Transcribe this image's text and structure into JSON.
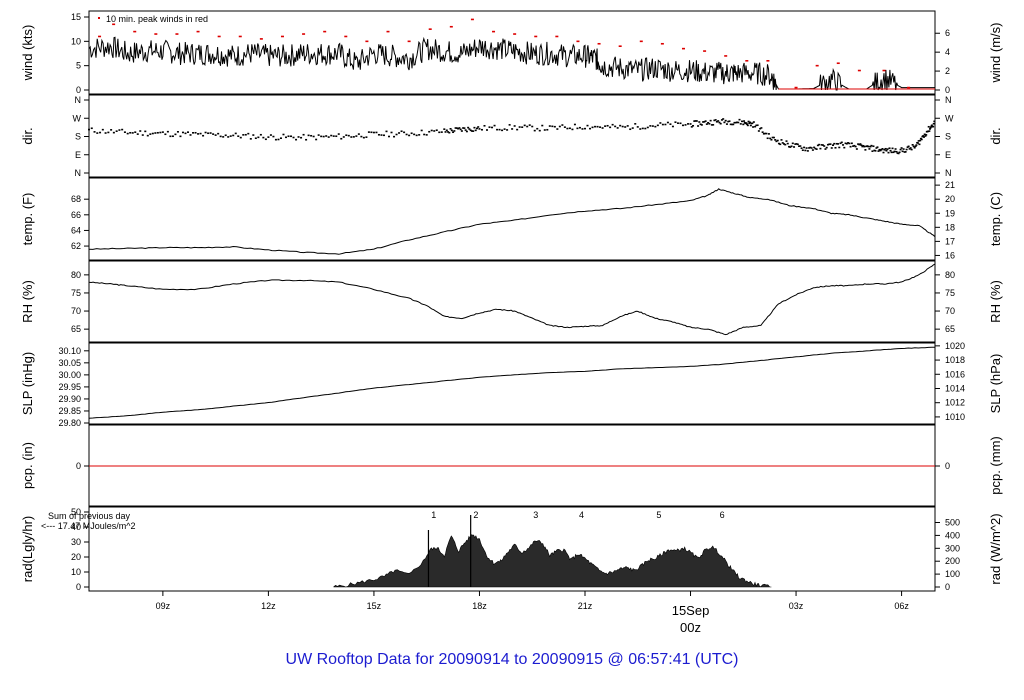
{
  "footer_title": "UW Rooftop Data for 20090914  to  20090915 @ 06:57:41  (UTC)",
  "colors": {
    "peak": "#dd0000",
    "purple": "#9900cc",
    "title_blue": "#1c1cd0",
    "date_red": "#cc0000",
    "line": "#000000"
  },
  "time_axis": {
    "tick_labels": [
      "09z",
      "12z",
      "15z",
      "18z",
      "21z",
      "03z",
      "06z"
    ],
    "tick_hours": [
      9,
      12,
      15,
      18,
      21,
      27,
      30
    ],
    "date_label": "15Sep",
    "midnight_label": "00z",
    "midnight_hour": 24,
    "range_hours": [
      6.9,
      30.95
    ]
  },
  "chart_data": [
    {
      "type": "line",
      "id": "wind",
      "ylabel": "wind (kts)",
      "y2label": "wind (m/s)",
      "ylim": [
        0,
        15
      ],
      "yticks": [
        "0",
        "5",
        "10",
        "15"
      ],
      "y2ticks": [
        "0",
        "2",
        "4",
        "6"
      ],
      "y2_tick_values": [
        0,
        2,
        4,
        6
      ],
      "annotation": "10 min. peak winds in red",
      "series": [
        {
          "x": [
            6.9,
            7.5,
            8.0,
            8.5,
            9.0,
            9.5,
            10.0,
            10.5,
            11.0,
            11.5,
            12.0,
            12.5,
            13.0,
            13.5,
            14.0,
            14.5,
            15.0,
            15.5,
            16.0,
            16.5,
            17.0,
            17.5,
            18.0,
            18.5,
            19.0,
            19.5,
            20.0,
            20.5,
            21.0,
            21.3,
            21.5,
            22.0,
            22.5,
            23.0,
            23.5,
            24.0,
            24.5,
            25.0,
            25.3,
            25.8,
            26.3,
            26.5,
            27.0,
            27.5,
            28.0,
            28.5,
            29.0,
            29.5,
            30.0,
            30.5,
            30.95
          ],
          "y": [
            8.5,
            9.0,
            7.5,
            8.0,
            8.0,
            7.5,
            7.5,
            7.5,
            7.0,
            7.5,
            7.0,
            7.0,
            7.5,
            7.5,
            7.5,
            5.5,
            7.5,
            7.0,
            6.5,
            8.5,
            8.0,
            7.5,
            9.0,
            8.5,
            8.0,
            7.5,
            7.5,
            7.0,
            7.0,
            6.5,
            5.0,
            4.5,
            4.0,
            4.5,
            4.0,
            4.0,
            3.5,
            3.5,
            3.5,
            3.5,
            3.0,
            0.2,
            0.2,
            0.3,
            2.2,
            0.2,
            0.2,
            2.5,
            0.5,
            0.5,
            0.5
          ]
        }
      ],
      "peaks": {
        "x": [
          7.2,
          7.6,
          8.2,
          8.8,
          9.4,
          10.0,
          10.6,
          11.2,
          11.8,
          12.4,
          13.0,
          13.6,
          14.2,
          14.8,
          15.4,
          16.0,
          16.6,
          17.2,
          17.8,
          18.4,
          19.0,
          19.6,
          20.2,
          20.8,
          21.4,
          22.0,
          22.6,
          23.2,
          23.8,
          24.4,
          25.0,
          25.6,
          26.2,
          27.0,
          27.6,
          28.2,
          28.8,
          29.5,
          30.2
        ],
        "y": [
          11.0,
          13.5,
          12.0,
          11.5,
          11.5,
          12.0,
          11.0,
          11.0,
          10.5,
          11.0,
          11.5,
          12.0,
          11.0,
          10.0,
          12.0,
          10.0,
          12.5,
          13.0,
          14.5,
          12.0,
          11.5,
          11.0,
          11.0,
          10.0,
          9.5,
          9.0,
          10.0,
          9.5,
          8.5,
          8.0,
          7.0,
          6.0,
          6.0,
          0.5,
          5.0,
          5.5,
          4.0,
          4.0,
          0.5
        ]
      }
    },
    {
      "type": "scatter",
      "id": "dir",
      "ylabel": "dir.",
      "y2label": "dir.",
      "ylim": [
        0,
        360
      ],
      "yticks": [
        "N",
        "E",
        "S",
        "W",
        "N"
      ],
      "y2ticks": [
        "N",
        "E",
        "S",
        "W",
        "N"
      ],
      "series": [
        {
          "x": [
            6.9,
            8.0,
            9.0,
            10.0,
            11.0,
            12.0,
            13.0,
            14.0,
            15.0,
            16.0,
            17.0,
            17.5,
            18.0,
            19.0,
            20.0,
            21.0,
            22.0,
            23.0,
            24.0,
            24.5,
            25.0,
            25.5,
            25.8,
            26.3,
            26.8,
            27.3,
            27.8,
            28.3,
            28.8,
            29.2,
            29.6,
            30.0,
            30.4,
            30.7,
            30.95
          ],
          "y": [
            210,
            200,
            195,
            190,
            185,
            178,
            175,
            180,
            190,
            195,
            205,
            215,
            220,
            225,
            220,
            230,
            225,
            235,
            240,
            250,
            255,
            250,
            240,
            170,
            140,
            120,
            130,
            140,
            130,
            120,
            110,
            110,
            130,
            200,
            250
          ]
        }
      ]
    },
    {
      "type": "line",
      "id": "temp",
      "ylabel": "temp. (F)",
      "y2label": "temp. (C)",
      "ylim": [
        60.6,
        70.2
      ],
      "yticks": [
        "62",
        "64",
        "66",
        "68"
      ],
      "y2ticks": [
        "16",
        "17",
        "18",
        "19",
        "20",
        "21"
      ],
      "series": [
        {
          "x": [
            6.9,
            8.0,
            9.0,
            10.0,
            11.0,
            12.0,
            13.0,
            14.0,
            15.0,
            16.0,
            17.0,
            18.0,
            19.0,
            20.0,
            21.0,
            22.0,
            23.0,
            24.0,
            24.5,
            24.8,
            25.2,
            25.7,
            26.2,
            26.8,
            27.5,
            28.0,
            28.5,
            29.0,
            29.5,
            30.0,
            30.5,
            30.95
          ],
          "y": [
            61.6,
            61.7,
            61.8,
            61.8,
            61.9,
            61.5,
            61.2,
            61.0,
            61.6,
            62.8,
            63.8,
            64.8,
            65.3,
            66.0,
            66.5,
            66.8,
            67.3,
            67.8,
            68.5,
            69.3,
            68.8,
            68.2,
            68.0,
            67.2,
            66.8,
            66.2,
            66.0,
            65.6,
            65.2,
            64.8,
            64.6,
            63.2
          ]
        }
      ]
    },
    {
      "type": "line",
      "id": "rh",
      "ylabel": "RH (%)",
      "y2label": "RH (%)",
      "ylim": [
        62,
        83
      ],
      "yticks": [
        "65",
        "70",
        "75",
        "80"
      ],
      "y2ticks": [
        "65",
        "70",
        "75",
        "80"
      ],
      "series": [
        {
          "x": [
            6.9,
            7.5,
            8.0,
            9.0,
            10.0,
            11.0,
            12.0,
            13.0,
            14.0,
            15.0,
            16.0,
            16.5,
            17.0,
            17.5,
            18.0,
            18.5,
            19.0,
            19.5,
            20.0,
            20.5,
            21.0,
            21.5,
            22.0,
            22.5,
            23.0,
            23.5,
            24.0,
            24.5,
            25.0,
            25.5,
            26.0,
            26.5,
            27.0,
            27.5,
            28.0,
            28.5,
            29.0,
            29.5,
            30.0,
            30.5,
            30.95
          ],
          "y": [
            78.0,
            77.5,
            77.0,
            76.0,
            76.0,
            77.5,
            78.5,
            78.5,
            78.0,
            76.0,
            73.5,
            71.5,
            68.5,
            68.0,
            69.5,
            70.5,
            70.0,
            68.0,
            66.0,
            65.5,
            65.8,
            66.0,
            68.5,
            70.0,
            68.0,
            67.0,
            65.5,
            65.0,
            63.5,
            65.5,
            66.0,
            72.0,
            74.5,
            76.5,
            77.0,
            77.0,
            77.5,
            77.5,
            78.0,
            80.0,
            83.0
          ]
        }
      ]
    },
    {
      "type": "line",
      "id": "slp",
      "ylabel": "SLP (inHg)",
      "y2label": "SLP (hPa)",
      "ylim": [
        29.8,
        30.12
      ],
      "yticks": [
        "29.80",
        "29.85",
        "29.90",
        "29.95",
        "30.00",
        "30.05",
        "30.10"
      ],
      "y2ticks": [
        "1010",
        "1012",
        "1014",
        "1016",
        "1018",
        "1020"
      ],
      "y2_tick_values": [
        1010,
        1012,
        1014,
        1016,
        1018,
        1020
      ],
      "series": [
        {
          "x": [
            6.9,
            8.0,
            9.0,
            10.0,
            11.0,
            12.0,
            13.0,
            14.0,
            15.0,
            16.0,
            17.0,
            18.0,
            19.0,
            20.0,
            21.0,
            22.0,
            23.0,
            24.0,
            25.0,
            26.0,
            27.0,
            28.0,
            29.0,
            30.0,
            30.95
          ],
          "y": [
            29.82,
            29.83,
            29.845,
            29.855,
            29.87,
            29.885,
            29.905,
            29.925,
            29.945,
            29.96,
            29.975,
            29.99,
            30.0,
            30.01,
            30.015,
            30.025,
            30.03,
            30.035,
            30.045,
            30.06,
            30.075,
            30.09,
            30.1,
            30.11,
            30.115
          ]
        }
      ]
    },
    {
      "type": "line",
      "id": "pcp",
      "ylabel": "pcp. (in)",
      "y2label": "pcp. (mm)",
      "ylim": [
        -1,
        1
      ],
      "yticks": [
        "0"
      ],
      "y2ticks": [
        "0"
      ],
      "series": [
        {
          "x": [
            6.9,
            30.95
          ],
          "y": [
            0,
            0
          ]
        }
      ]
    },
    {
      "type": "area",
      "id": "rad",
      "ylabel": "rad(Lgly/hr)",
      "y2label": "rad (W/m^2)",
      "ylim": [
        0,
        50
      ],
      "yticks": [
        "0",
        "10",
        "20",
        "30",
        "40",
        "50"
      ],
      "y2ticks": [
        "0",
        "100",
        "200",
        "300",
        "400",
        "500"
      ],
      "y2_tick_values": [
        0,
        100,
        200,
        300,
        400,
        500
      ],
      "annotation_lines": [
        "Sum of previous day",
        "<--- 17.47 MJoules/m^2"
      ],
      "hour_marks": [
        "1",
        "2",
        "3",
        "4",
        "5",
        "6"
      ],
      "hour_mark_x": [
        16.7,
        17.9,
        19.6,
        20.9,
        23.1,
        24.9
      ],
      "series": [
        {
          "x": [
            13.85,
            14.2,
            14.6,
            15.0,
            15.3,
            15.6,
            16.0,
            16.4,
            16.6,
            16.8,
            17.0,
            17.2,
            17.4,
            17.6,
            17.8,
            18.0,
            18.2,
            18.4,
            18.6,
            18.8,
            19.0,
            19.2,
            19.4,
            19.6,
            19.8,
            20.0,
            20.2,
            20.4,
            20.6,
            20.8,
            21.0,
            21.2,
            21.4,
            21.6,
            21.8,
            22.0,
            22.2,
            22.4,
            22.6,
            22.8,
            23.0,
            23.2,
            23.4,
            23.6,
            23.8,
            24.0,
            24.2,
            24.4,
            24.6,
            24.8,
            25.0,
            25.2,
            25.4,
            25.6,
            25.8,
            26.0,
            26.3
          ],
          "y": [
            0,
            1,
            3,
            5,
            7,
            11,
            8,
            17,
            25,
            26,
            21,
            34,
            24,
            30,
            35,
            32,
            21,
            16,
            17,
            23,
            28,
            23,
            26,
            31,
            29,
            21,
            24,
            25,
            18,
            22,
            19,
            15,
            11,
            9,
            10,
            12,
            13,
            11,
            14,
            18,
            19,
            22,
            25,
            24,
            26,
            23,
            19,
            24,
            27,
            23,
            17,
            11,
            6,
            4,
            2,
            1,
            0
          ],
          "spikes": [
            {
              "x": 16.55,
              "y": 38
            },
            {
              "x": 17.75,
              "y": 48
            }
          ]
        }
      ]
    }
  ]
}
